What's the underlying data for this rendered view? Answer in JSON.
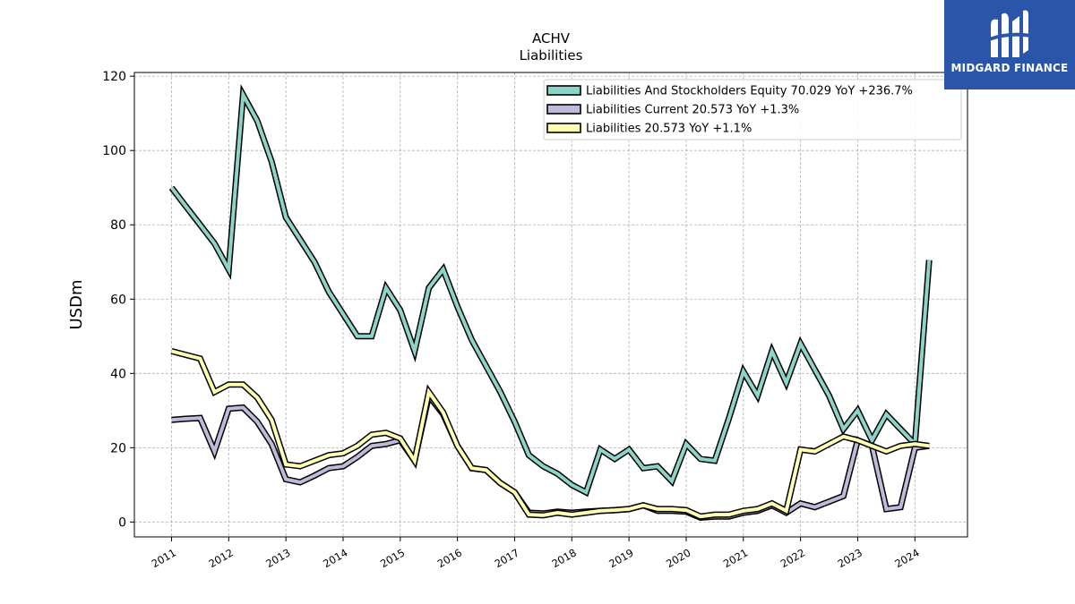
{
  "brand": {
    "name": "MIDGARD FINANCE",
    "logo_icon": "midgard-logo-icon",
    "color": "#2b55a8"
  },
  "chart_data": {
    "type": "line",
    "title": "ACHV",
    "subtitle": "Liabilities",
    "xlabel": "",
    "ylabel": "USDm",
    "xlim": [
      2010.35,
      2024.92
    ],
    "ylim": [
      -4,
      121
    ],
    "yticks": [
      0,
      20,
      40,
      60,
      80,
      100,
      120
    ],
    "xticks": [
      2011,
      2012,
      2013,
      2014,
      2015,
      2016,
      2017,
      2018,
      2019,
      2020,
      2021,
      2022,
      2023,
      2024
    ],
    "xtick_labels": [
      "2011",
      "2012",
      "2013",
      "2014",
      "2015",
      "2016",
      "2017",
      "2018",
      "2019",
      "2020",
      "2021",
      "2022",
      "2023",
      "2024"
    ],
    "grid": true,
    "legend_position": "top-right",
    "x": [
      2011.0,
      2011.25,
      2011.5,
      2011.75,
      2012.0,
      2012.25,
      2012.5,
      2012.75,
      2013.0,
      2013.25,
      2013.5,
      2013.75,
      2014.0,
      2014.25,
      2014.5,
      2014.75,
      2015.0,
      2015.25,
      2015.5,
      2015.75,
      2016.0,
      2016.25,
      2016.5,
      2016.75,
      2017.0,
      2017.25,
      2017.5,
      2017.75,
      2018.0,
      2018.25,
      2018.5,
      2018.75,
      2019.0,
      2019.25,
      2019.5,
      2019.75,
      2020.0,
      2020.25,
      2020.5,
      2020.75,
      2021.0,
      2021.25,
      2021.5,
      2021.75,
      2022.0,
      2022.25,
      2022.5,
      2022.75,
      2023.0,
      2023.25,
      2023.5,
      2023.75,
      2024.0,
      2024.25
    ],
    "series": [
      {
        "name": "Liabilities And Stockholders Equity",
        "legend": "Liabilities And Stockholders Equity  70.029 YoY +236.7%",
        "color": "#8dd3c7",
        "values": [
          90,
          85,
          80,
          75,
          68,
          115,
          108,
          97,
          82,
          76,
          70,
          62,
          56,
          50,
          50,
          63,
          57,
          46,
          63,
          68,
          58,
          49,
          42,
          35,
          27,
          18,
          15,
          13,
          10,
          8,
          19.5,
          17,
          19.5,
          14.5,
          15,
          11,
          21,
          17,
          16.5,
          28,
          40.5,
          34,
          46,
          37.5,
          48,
          41,
          34,
          25,
          30,
          22,
          29,
          25,
          21,
          70.5
        ]
      },
      {
        "name": "Liabilities Current",
        "legend": "Liabilities Current  20.573 YoY +1.3%",
        "color": "#bebada",
        "values": [
          27.5,
          27.8,
          28,
          19,
          30.5,
          30.8,
          27,
          21,
          11.5,
          10.7,
          12.5,
          14.5,
          15,
          17.5,
          20.5,
          21,
          22,
          16.5,
          34,
          29,
          20.5,
          14.5,
          14,
          10.5,
          8,
          2.5,
          2.3,
          2.8,
          2.5,
          2.8,
          3,
          3.2,
          3.5,
          4.5,
          3,
          3,
          2.8,
          1.2,
          1.5,
          1.5,
          2.5,
          3,
          4.5,
          2.5,
          5,
          4,
          5.5,
          7,
          22,
          20.5,
          3.5,
          4,
          20,
          20.5
        ]
      },
      {
        "name": "Liabilities",
        "legend": "Liabilities  20.573 YoY +1.1%",
        "color": "#ffffb3",
        "values": [
          46,
          45,
          44,
          35,
          37,
          37,
          33.5,
          27.5,
          15.5,
          15,
          16.5,
          18,
          18.5,
          20.5,
          23.5,
          24,
          22.5,
          16.5,
          35,
          29.5,
          20.5,
          14.5,
          14,
          10.5,
          8,
          2,
          1.8,
          2.5,
          2,
          2.5,
          3,
          3.2,
          3.5,
          4.5,
          3.5,
          3.5,
          3.2,
          1.5,
          2,
          2,
          3,
          3.5,
          5,
          3,
          19.5,
          19,
          21,
          23,
          22,
          20.5,
          19,
          20.5,
          21,
          20.5
        ]
      }
    ]
  }
}
